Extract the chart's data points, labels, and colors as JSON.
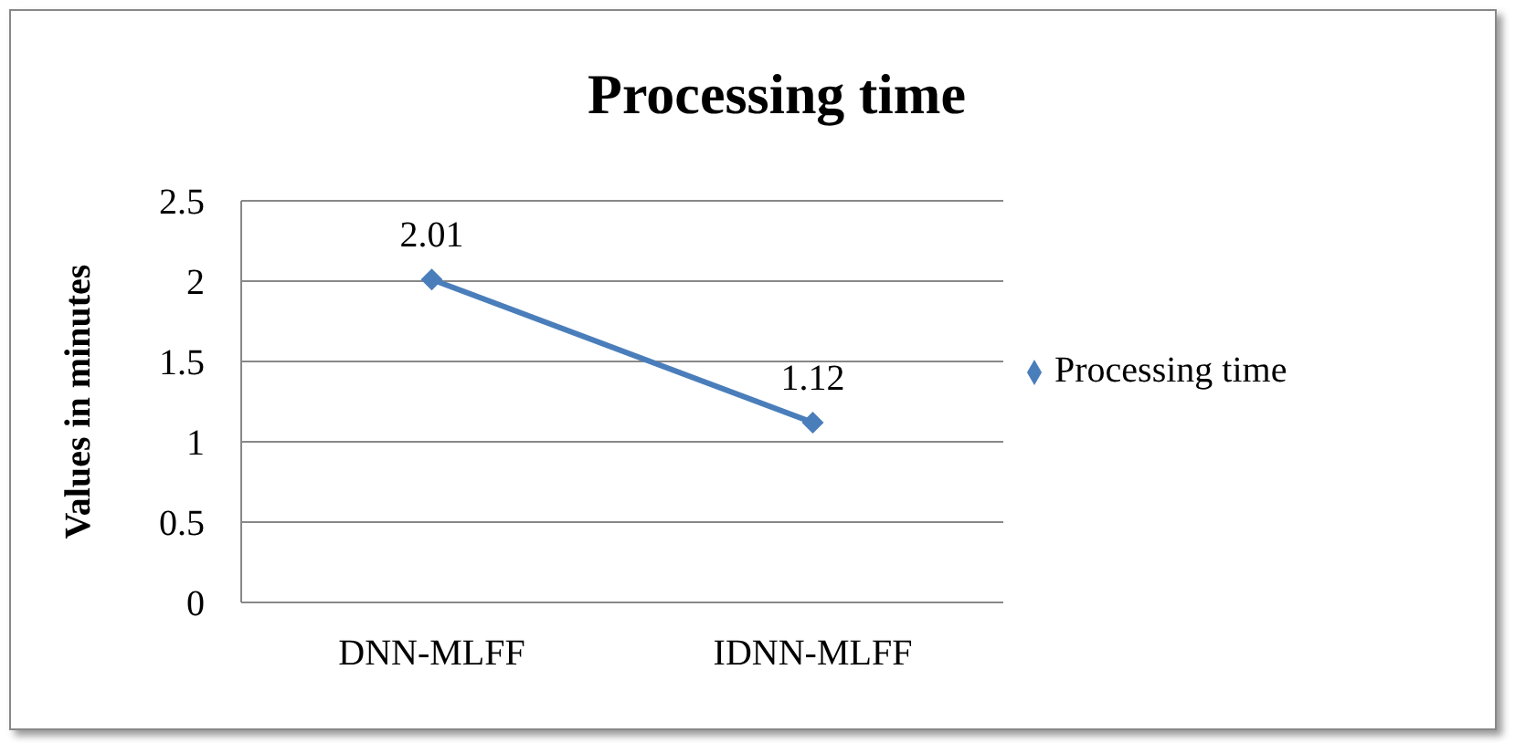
{
  "chart_data": {
    "type": "line",
    "title": "Processing time",
    "ylabel": "Values in minutes",
    "categories": [
      "DNN-MLFF",
      "IDNN-MLFF"
    ],
    "series": [
      {
        "name": "Processing time",
        "color": "#4a7ebb",
        "values": [
          2.01,
          1.12
        ]
      }
    ],
    "ylim": [
      0,
      2.5
    ],
    "yticks": [
      0,
      0.5,
      1,
      1.5,
      2,
      2.5
    ],
    "grid": "y",
    "legend": "right",
    "marker": "diamond",
    "line_style": "solid",
    "data_labels": true
  }
}
